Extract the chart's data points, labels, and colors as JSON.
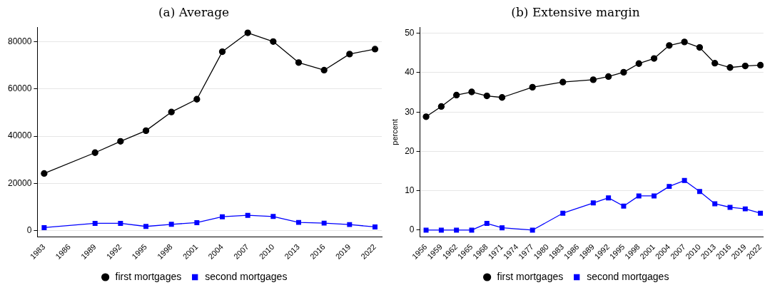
{
  "chart_data": [
    {
      "type": "line",
      "title": "(a) Average",
      "x": [
        1983,
        1989,
        1992,
        1995,
        1998,
        2001,
        2004,
        2007,
        2010,
        2013,
        2016,
        2019,
        2022
      ],
      "xlim": [
        1982.2,
        2022.8
      ],
      "xticks": [
        1983,
        1986,
        1989,
        1992,
        1995,
        1998,
        2001,
        2004,
        2007,
        2010,
        2013,
        2016,
        2019,
        2022
      ],
      "ylim": [
        -2600,
        86000
      ],
      "yticks": [
        0,
        20000,
        40000,
        60000,
        80000
      ],
      "grid": "y",
      "legend": "bottom",
      "line_style": "solid",
      "series": [
        {
          "name": "first mortgages",
          "color": "#000000",
          "marker": "circle",
          "values": [
            24200,
            33000,
            37800,
            42300,
            50200,
            55600,
            75700,
            83700,
            80000,
            71100,
            67900,
            74700,
            76800
          ]
        },
        {
          "name": "second mortgages",
          "color": "#0000ff",
          "marker": "square",
          "values": [
            1300,
            3100,
            3100,
            1800,
            2700,
            3400,
            5900,
            6500,
            6000,
            3500,
            3200,
            2600,
            1600
          ]
        }
      ]
    },
    {
      "type": "line",
      "title": "(b) Extensive margin",
      "ylabel": "percent",
      "x": [
        1956,
        1959,
        1962,
        1965,
        1968,
        1971,
        1977,
        1983,
        1989,
        1992,
        1995,
        1998,
        2001,
        2004,
        2007,
        2010,
        2013,
        2016,
        2019,
        2022
      ],
      "xlim": [
        1954.8,
        2022.6
      ],
      "xticks": [
        1956,
        1959,
        1962,
        1965,
        1968,
        1971,
        1974,
        1977,
        1980,
        1983,
        1986,
        1989,
        1992,
        1995,
        1998,
        2001,
        2004,
        2007,
        2010,
        2013,
        2016,
        2019,
        2022
      ],
      "ylim": [
        -1.7,
        51.5
      ],
      "yticks": [
        0,
        10,
        20,
        30,
        40,
        50
      ],
      "grid": "y",
      "legend": "bottom",
      "line_style": "solid",
      "series": [
        {
          "name": "first mortgages",
          "color": "#000000",
          "marker": "circle",
          "values": [
            28.8,
            31.4,
            34.3,
            35.1,
            34.1,
            33.7,
            36.3,
            37.6,
            38.2,
            39.0,
            40.1,
            42.3,
            43.6,
            46.9,
            47.8,
            46.4,
            42.4,
            41.3,
            41.7,
            41.9
          ]
        },
        {
          "name": "second mortgages",
          "color": "#0000ff",
          "marker": "square",
          "values": [
            0,
            0,
            0,
            0,
            1.7,
            0.6,
            0,
            4.3,
            6.9,
            8.2,
            6.1,
            8.7,
            8.7,
            11.1,
            12.6,
            9.8,
            6.7,
            5.8,
            5.4,
            4.3
          ]
        }
      ]
    }
  ]
}
